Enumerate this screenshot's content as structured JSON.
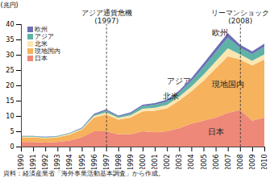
{
  "chart_data": {
    "type": "area",
    "stacked": true,
    "y_label": "(兆円)",
    "caption": "資料：経済産業省「海外事業活動基本調査」から作成。",
    "x": [
      1990,
      1991,
      1992,
      1993,
      1994,
      1995,
      1996,
      1997,
      1998,
      1999,
      2000,
      2001,
      2002,
      2003,
      2004,
      2005,
      2006,
      2007,
      2008,
      2009,
      2010
    ],
    "xlim": [
      1990,
      2010
    ],
    "xticks": [
      1990,
      1991,
      1992,
      1993,
      1994,
      1995,
      1996,
      1997,
      1998,
      1999,
      2000,
      2001,
      2002,
      2003,
      2004,
      2005,
      2006,
      2007,
      2008,
      2009,
      2010
    ],
    "ylim": [
      0,
      40
    ],
    "yticks": [
      0,
      5,
      10,
      15,
      20,
      25,
      30,
      35,
      40
    ],
    "grid": false,
    "legend": "top-left",
    "series": [
      {
        "name": "日本",
        "color": "#ee8878",
        "values": [
          1.5,
          1.5,
          1.3,
          1.5,
          2,
          3,
          5,
          5,
          4,
          4,
          5,
          4.7,
          5,
          6,
          7.5,
          8.5,
          9.5,
          11,
          12,
          8.5,
          9.5
        ]
      },
      {
        "name": "現地国内",
        "color": "#f6b25c",
        "values": [
          1.5,
          1.5,
          1.4,
          1.5,
          1.9,
          2.5,
          4.5,
          5.5,
          4.8,
          5.5,
          6.5,
          7,
          7.5,
          9,
          10.5,
          13,
          16,
          18.5,
          16.5,
          18,
          19
        ]
      },
      {
        "name": "北米",
        "color": "#fbe6b0",
        "values": [
          0.2,
          0.2,
          0.2,
          0.2,
          0.3,
          0.3,
          0.5,
          0.7,
          0.6,
          0.7,
          0.9,
          1,
          1.1,
          1.3,
          1.6,
          2,
          2.3,
          2.6,
          1.6,
          1.5,
          1.6
        ]
      },
      {
        "name": "アジア",
        "color": "#5eb3a6",
        "values": [
          0.2,
          0.2,
          0.2,
          0.2,
          0.2,
          0.2,
          0.4,
          0.6,
          0.4,
          0.6,
          0.8,
          1,
          1.1,
          1.3,
          1.8,
          2.5,
          3,
          3.5,
          2.2,
          2.2,
          2.5
        ]
      },
      {
        "name": "欧州",
        "color": "#6b6fb5",
        "values": [
          0.1,
          0.1,
          0.1,
          0.1,
          0.1,
          0.2,
          0.3,
          0.4,
          0.3,
          0.4,
          0.5,
          0.5,
          0.6,
          0.7,
          0.9,
          1.2,
          1.4,
          1.5,
          1,
          0.9,
          1
        ]
      }
    ],
    "annotations": [
      {
        "x": 1997,
        "text": "アジア通貨危機",
        "subtext": "(1997)"
      },
      {
        "x": 2008,
        "text": "リーマンショック",
        "subtext": "(2008)"
      }
    ]
  }
}
